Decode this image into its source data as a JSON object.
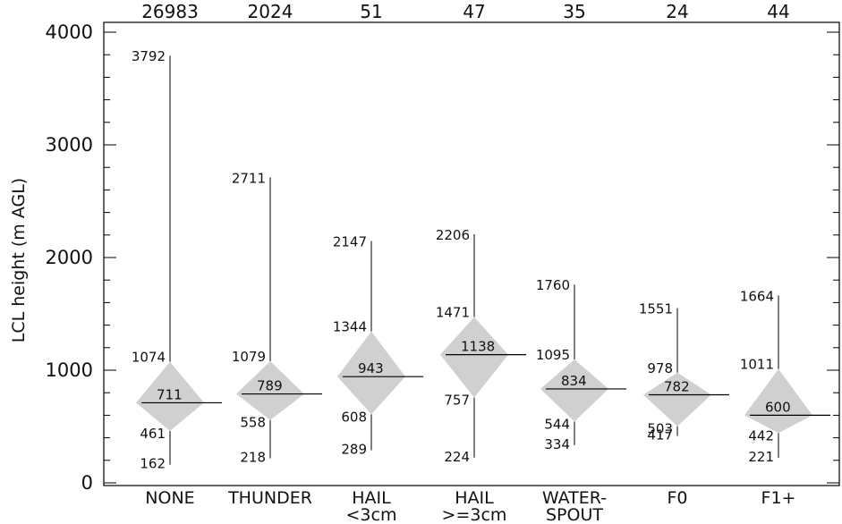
{
  "chart_data": {
    "type": "box-diamond",
    "ylabel": "LCL height (m AGL)",
    "ylim": [
      0,
      4000
    ],
    "yticks": [
      "0",
      "1000",
      "2000",
      "3000",
      "4000"
    ],
    "grid": false,
    "categories": [
      {
        "line1": "NONE",
        "line2": "",
        "count": "26983",
        "max": 3792,
        "upper": 1074,
        "median": 711,
        "lower": 461,
        "min": 162
      },
      {
        "line1": "THUNDER",
        "line2": "",
        "count": "2024",
        "max": 2711,
        "upper": 1079,
        "median": 789,
        "lower": 558,
        "min": 218
      },
      {
        "line1": "HAIL",
        "line2": "<3cm",
        "count": "51",
        "max": 2147,
        "upper": 1344,
        "median": 943,
        "lower": 608,
        "min": 289
      },
      {
        "line1": "HAIL",
        "line2": ">=3cm",
        "count": "47",
        "max": 2206,
        "upper": 1471,
        "median": 1138,
        "lower": 757,
        "min": 224
      },
      {
        "line1": "WATER-",
        "line2": "SPOUT",
        "count": "35",
        "max": 1760,
        "upper": 1095,
        "median": 834,
        "lower": 544,
        "min": 334
      },
      {
        "line1": "F0",
        "line2": "",
        "count": "24",
        "max": 1551,
        "upper": 978,
        "median": 782,
        "lower": 503,
        "min": 417
      },
      {
        "line1": "F1+",
        "line2": "",
        "count": "44",
        "max": 1664,
        "upper": 1011,
        "median": 600,
        "lower": 442,
        "min": 221
      }
    ]
  }
}
